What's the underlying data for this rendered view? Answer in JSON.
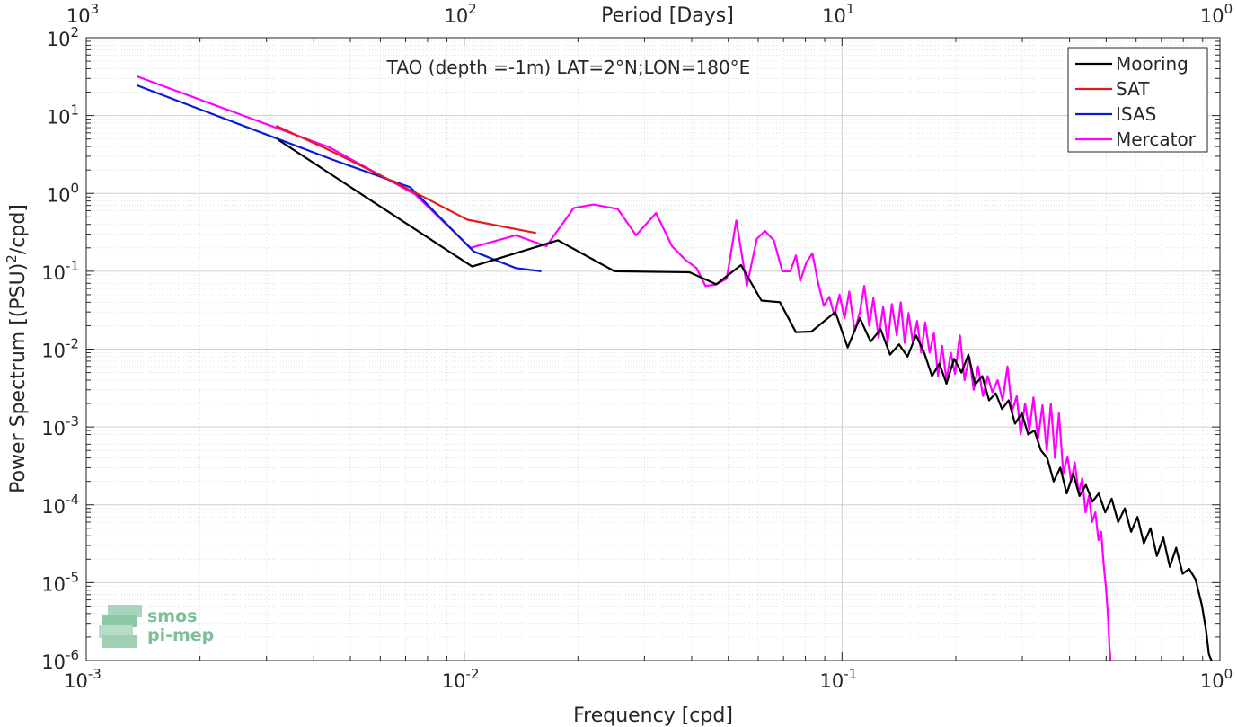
{
  "chart_data": {
    "type": "line",
    "title": "TAO (depth =-1m) LAT=2°N;LON=180°E",
    "xlabel": "Frequency [cpd]",
    "ylabel": "Power Spectrum [(PSU)",
    "ylabel_sup": "2",
    "ylabel_tail": "/cpd]",
    "top_xlabel": "Period [Days]",
    "x_scale": "log",
    "y_scale": "log",
    "xlim": [
      0.001,
      1
    ],
    "ylim": [
      1e-06,
      100
    ],
    "grid": true,
    "legend_position": "top-right",
    "x_ticks": [
      {
        "base": "10",
        "exp": "-3",
        "value": 0.001
      },
      {
        "base": "10",
        "exp": "-2",
        "value": 0.01
      },
      {
        "base": "10",
        "exp": "-1",
        "value": 0.1
      },
      {
        "base": "10",
        "exp": "0",
        "value": 1
      }
    ],
    "y_ticks": [
      {
        "base": "10",
        "exp": "-6",
        "value": 1e-06
      },
      {
        "base": "10",
        "exp": "-5",
        "value": 1e-05
      },
      {
        "base": "10",
        "exp": "-4",
        "value": 0.0001
      },
      {
        "base": "10",
        "exp": "-3",
        "value": 0.001
      },
      {
        "base": "10",
        "exp": "-2",
        "value": 0.01
      },
      {
        "base": "10",
        "exp": "-1",
        "value": 0.1
      },
      {
        "base": "10",
        "exp": "0",
        "value": 1
      },
      {
        "base": "10",
        "exp": "1",
        "value": 10
      },
      {
        "base": "10",
        "exp": "2",
        "value": 100
      }
    ],
    "top_ticks": [
      {
        "base": "10",
        "exp": "3",
        "freq": 0.001
      },
      {
        "base": "10",
        "exp": "2",
        "freq": 0.01
      },
      {
        "base": "10",
        "exp": "1",
        "freq": 0.1
      },
      {
        "base": "10",
        "exp": "0",
        "freq": 1
      }
    ],
    "series": [
      {
        "name": "Mooring",
        "color": "#000000",
        "points": [
          [
            0.00322,
            4.9
          ],
          [
            0.0105,
            0.115
          ],
          [
            0.0177,
            0.25
          ],
          [
            0.025,
            0.1
          ],
          [
            0.0395,
            0.097
          ],
          [
            0.0465,
            0.068
          ],
          [
            0.054,
            0.12
          ],
          [
            0.0612,
            0.042
          ],
          [
            0.0685,
            0.04
          ],
          [
            0.0755,
            0.0165
          ],
          [
            0.083,
            0.0168
          ],
          [
            0.096,
            0.03
          ],
          [
            0.1035,
            0.0105
          ],
          [
            0.1115,
            0.025
          ],
          [
            0.119,
            0.0125
          ],
          [
            0.1265,
            0.018
          ],
          [
            0.134,
            0.0085
          ],
          [
            0.1415,
            0.0115
          ],
          [
            0.149,
            0.008
          ],
          [
            0.157,
            0.015
          ],
          [
            0.165,
            0.009
          ],
          [
            0.173,
            0.0045
          ],
          [
            0.181,
            0.0065
          ],
          [
            0.189,
            0.0036
          ],
          [
            0.198,
            0.0075
          ],
          [
            0.207,
            0.005
          ],
          [
            0.216,
            0.0085
          ],
          [
            0.225,
            0.0035
          ],
          [
            0.235,
            0.0045
          ],
          [
            0.245,
            0.0022
          ],
          [
            0.255,
            0.0027
          ],
          [
            0.265,
            0.0017
          ],
          [
            0.276,
            0.0022
          ],
          [
            0.287,
            0.0011
          ],
          [
            0.299,
            0.0015
          ],
          [
            0.311,
            0.0008
          ],
          [
            0.323,
            0.0009
          ],
          [
            0.336,
            0.0005
          ],
          [
            0.349,
            0.0004
          ],
          [
            0.363,
            0.0002
          ],
          [
            0.378,
            0.0003
          ],
          [
            0.393,
            0.00014
          ],
          [
            0.409,
            0.00025
          ],
          [
            0.425,
            0.00013
          ],
          [
            0.442,
            0.00018
          ],
          [
            0.46,
            0.00011
          ],
          [
            0.478,
            0.00014
          ],
          [
            0.497,
            8e-05
          ],
          [
            0.517,
            0.00012
          ],
          [
            0.538,
            6e-05
          ],
          [
            0.56,
            9e-05
          ],
          [
            0.582,
            4.5e-05
          ],
          [
            0.605,
            7e-05
          ],
          [
            0.629,
            3.2e-05
          ],
          [
            0.655,
            5e-05
          ],
          [
            0.681,
            2.2e-05
          ],
          [
            0.708,
            3.8e-05
          ],
          [
            0.737,
            1.6e-05
          ],
          [
            0.766,
            2.8e-05
          ],
          [
            0.797,
            1.3e-05
          ],
          [
            0.829,
            1.5e-05
          ],
          [
            0.862,
            1.1e-05
          ],
          [
            0.897,
            5e-06
          ],
          [
            0.918,
            2.5e-06
          ],
          [
            0.935,
            1.2e-06
          ],
          [
            0.95,
            1e-06
          ]
        ]
      },
      {
        "name": "SAT",
        "color": "#e41a1c",
        "points": [
          [
            0.00318,
            7.4
          ],
          [
            0.0044,
            3.6
          ],
          [
            0.0075,
            1.0
          ],
          [
            0.0102,
            0.46
          ],
          [
            0.0155,
            0.31
          ]
        ]
      },
      {
        "name": "ISAS",
        "color": "#0a1bd6",
        "points": [
          [
            0.00136,
            24.5
          ],
          [
            0.00322,
            5.0
          ],
          [
            0.0045,
            2.7
          ],
          [
            0.0072,
            1.2
          ],
          [
            0.0106,
            0.18
          ],
          [
            0.0137,
            0.11
          ],
          [
            0.016,
            0.1
          ]
        ]
      },
      {
        "name": "Mercator",
        "color": "#ff00ff",
        "points": [
          [
            0.00136,
            32
          ],
          [
            0.0044,
            3.9
          ],
          [
            0.0074,
            0.98
          ],
          [
            0.0104,
            0.2
          ],
          [
            0.0137,
            0.29
          ],
          [
            0.0165,
            0.21
          ],
          [
            0.0195,
            0.65
          ],
          [
            0.022,
            0.72
          ],
          [
            0.0255,
            0.63
          ],
          [
            0.0285,
            0.29
          ],
          [
            0.0322,
            0.56
          ],
          [
            0.0355,
            0.21
          ],
          [
            0.0385,
            0.14
          ],
          [
            0.0412,
            0.11
          ],
          [
            0.0435,
            0.065
          ],
          [
            0.0462,
            0.067
          ],
          [
            0.0495,
            0.08
          ],
          [
            0.0525,
            0.45
          ],
          [
            0.056,
            0.065
          ],
          [
            0.0595,
            0.26
          ],
          [
            0.0625,
            0.33
          ],
          [
            0.066,
            0.25
          ],
          [
            0.0695,
            0.1
          ],
          [
            0.073,
            0.1
          ],
          [
            0.0755,
            0.16
          ],
          [
            0.0775,
            0.075
          ],
          [
            0.0805,
            0.13
          ],
          [
            0.0835,
            0.17
          ],
          [
            0.0865,
            0.07
          ],
          [
            0.0895,
            0.036
          ],
          [
            0.0925,
            0.047
          ],
          [
            0.0955,
            0.027
          ],
          [
            0.0985,
            0.05
          ],
          [
            0.1015,
            0.025
          ],
          [
            0.1045,
            0.055
          ],
          [
            0.108,
            0.017
          ],
          [
            0.1115,
            0.03
          ],
          [
            0.1145,
            0.065
          ],
          [
            0.118,
            0.02
          ],
          [
            0.121,
            0.045
          ],
          [
            0.125,
            0.014
          ],
          [
            0.1285,
            0.035
          ],
          [
            0.132,
            0.012
          ],
          [
            0.1355,
            0.038
          ],
          [
            0.1395,
            0.015
          ],
          [
            0.143,
            0.04
          ],
          [
            0.1465,
            0.012
          ],
          [
            0.15,
            0.029
          ],
          [
            0.154,
            0.012
          ],
          [
            0.158,
            0.023
          ],
          [
            0.162,
            0.009
          ],
          [
            0.166,
            0.022
          ],
          [
            0.1705,
            0.009
          ],
          [
            0.175,
            0.016
          ],
          [
            0.1795,
            0.0045
          ],
          [
            0.184,
            0.011
          ],
          [
            0.189,
            0.004
          ],
          [
            0.194,
            0.009
          ],
          [
            0.199,
            0.0048
          ],
          [
            0.205,
            0.015
          ],
          [
            0.211,
            0.004
          ],
          [
            0.217,
            0.008
          ],
          [
            0.223,
            0.003
          ],
          [
            0.229,
            0.006
          ],
          [
            0.236,
            0.0025
          ],
          [
            0.243,
            0.0045
          ],
          [
            0.25,
            0.0028
          ],
          [
            0.258,
            0.004
          ],
          [
            0.266,
            0.0022
          ],
          [
            0.274,
            0.006
          ],
          [
            0.282,
            0.0016
          ],
          [
            0.29,
            0.0025
          ],
          [
            0.297,
            0.0008
          ],
          [
            0.305,
            0.002
          ],
          [
            0.313,
            0.0009
          ],
          [
            0.321,
            0.0024
          ],
          [
            0.33,
            0.0007
          ],
          [
            0.339,
            0.0019
          ],
          [
            0.348,
            0.0005
          ],
          [
            0.357,
            0.002
          ],
          [
            0.366,
            0.0004
          ],
          [
            0.375,
            0.0015
          ],
          [
            0.385,
            0.00025
          ],
          [
            0.395,
            0.00042
          ],
          [
            0.404,
            0.0002
          ],
          [
            0.413,
            0.00035
          ],
          [
            0.423,
            0.00014
          ],
          [
            0.432,
            0.00022
          ],
          [
            0.441,
            8e-05
          ],
          [
            0.45,
            0.00013
          ],
          [
            0.459,
            6e-05
          ],
          [
            0.468,
            8e-05
          ],
          [
            0.477,
            3.5e-05
          ],
          [
            0.485,
            4.5e-05
          ],
          [
            0.492,
            1.8e-05
          ],
          [
            0.499,
            9e-06
          ],
          [
            0.505,
            4e-06
          ],
          [
            0.51,
            1.5e-06
          ],
          [
            0.513,
            1e-06
          ]
        ]
      }
    ]
  },
  "watermark": {
    "line1": "smos",
    "line2": "pi-mep"
  }
}
